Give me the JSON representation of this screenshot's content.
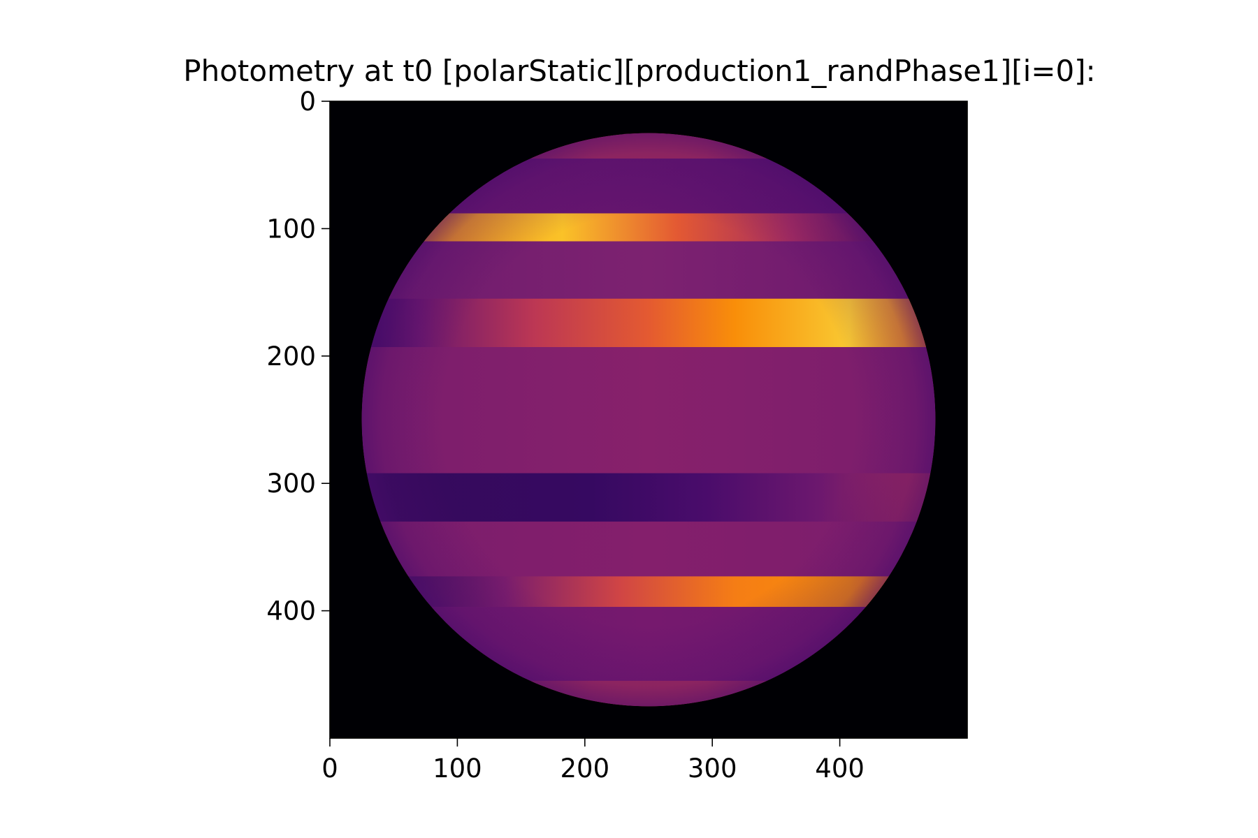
{
  "chart_data": {
    "type": "heatmap",
    "title": "Photometry at t0 [polarStatic][production1_randPhase1][i=0]:",
    "xlabel": "",
    "ylabel": "",
    "image_size": [
      500,
      500
    ],
    "xlim": [
      0,
      500
    ],
    "ylim": [
      500,
      0
    ],
    "x_ticks": [
      0,
      100,
      200,
      300,
      400
    ],
    "y_ticks": [
      0,
      100,
      200,
      300,
      400
    ],
    "colormap": "inferno",
    "background_color": "#000004",
    "disk": {
      "center": [
        250,
        250
      ],
      "radius": 225
    },
    "base_color": "#7a1d6d",
    "limb_color": "#4a0c6b",
    "bands": [
      {
        "y_start": 22,
        "y_end": 45,
        "stops": [
          [
            0,
            "#6d1a6e"
          ],
          [
            0.4,
            "#a72e5c"
          ],
          [
            0.6,
            "#a72e5c"
          ],
          [
            1,
            "#6d1a6e"
          ]
        ]
      },
      {
        "y_start": 45,
        "y_end": 88,
        "stops": [
          [
            0,
            "#6a176e"
          ],
          [
            0.5,
            "#64156e"
          ],
          [
            1,
            "#56106e"
          ]
        ]
      },
      {
        "y_start": 88,
        "y_end": 110,
        "stops": [
          [
            0,
            "#f57d15"
          ],
          [
            0.35,
            "#fac228"
          ],
          [
            0.55,
            "#e35933"
          ],
          [
            0.75,
            "#a52c60"
          ],
          [
            1,
            "#420a68"
          ]
        ]
      },
      {
        "y_start": 110,
        "y_end": 155,
        "stops": [
          [
            0,
            "#6e1b6e"
          ],
          [
            0.5,
            "#7d2270"
          ],
          [
            1,
            "#6a176e"
          ]
        ]
      },
      {
        "y_start": 155,
        "y_end": 193,
        "stops": [
          [
            0,
            "#3b0964"
          ],
          [
            0.1,
            "#6a176e"
          ],
          [
            0.3,
            "#bc3754"
          ],
          [
            0.5,
            "#e45a31"
          ],
          [
            0.65,
            "#f98e09"
          ],
          [
            0.85,
            "#f9c932"
          ],
          [
            1,
            "#f57d15"
          ]
        ]
      },
      {
        "y_start": 193,
        "y_end": 292,
        "stops": [
          [
            0,
            "#7a1d6d"
          ],
          [
            0.5,
            "#87216b"
          ],
          [
            1,
            "#7a1d6d"
          ]
        ]
      },
      {
        "y_start": 292,
        "y_end": 330,
        "stops": [
          [
            0,
            "#350a5b"
          ],
          [
            0.4,
            "#360961"
          ],
          [
            0.6,
            "#4a0c6b"
          ],
          [
            0.8,
            "#6d186e"
          ],
          [
            1,
            "#a72e5c"
          ]
        ]
      },
      {
        "y_start": 330,
        "y_end": 373,
        "stops": [
          [
            0,
            "#7a1d6d"
          ],
          [
            0.5,
            "#841f6c"
          ],
          [
            1,
            "#7a1d6d"
          ]
        ]
      },
      {
        "y_start": 373,
        "y_end": 397,
        "stops": [
          [
            0,
            "#2f0a5b"
          ],
          [
            0.25,
            "#7a1d6d"
          ],
          [
            0.45,
            "#d04545"
          ],
          [
            0.65,
            "#f57d15"
          ],
          [
            0.85,
            "#f98e09"
          ],
          [
            1,
            "#e55c30"
          ]
        ]
      },
      {
        "y_start": 397,
        "y_end": 455,
        "stops": [
          [
            0,
            "#6a176e"
          ],
          [
            0.5,
            "#76196e"
          ],
          [
            1,
            "#6a176e"
          ]
        ]
      },
      {
        "y_start": 455,
        "y_end": 478,
        "stops": [
          [
            0,
            "#6d1a6e"
          ],
          [
            0.4,
            "#a72e5c"
          ],
          [
            0.6,
            "#a72e5c"
          ],
          [
            1,
            "#6d1a6e"
          ]
        ]
      }
    ]
  }
}
